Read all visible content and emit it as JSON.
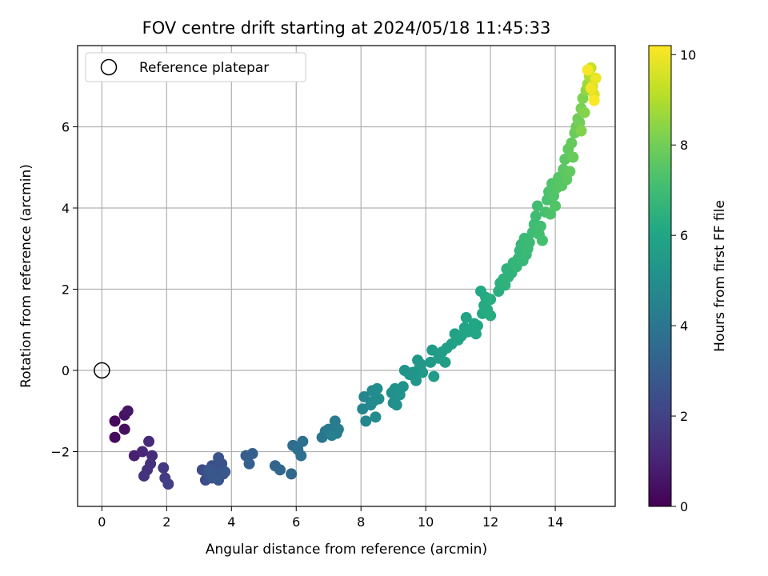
{
  "chart_data": {
    "type": "scatter",
    "title": "FOV centre drift starting at 2024/05/18 11:45:33",
    "xlabel": "Angular distance from reference (arcmin)",
    "ylabel": "Rotation from reference (arcmin)",
    "xlim": [
      -0.75,
      15.85
    ],
    "ylim": [
      -3.35,
      8.0
    ],
    "xticks": [
      0,
      2,
      4,
      6,
      8,
      10,
      12,
      14
    ],
    "yticks": [
      -2,
      0,
      2,
      4,
      6
    ],
    "grid": true,
    "legend": {
      "placement": "top-left",
      "entries": [
        "Reference platepar"
      ]
    },
    "reference_point": {
      "x": 0,
      "y": 0,
      "marker": "open-circle"
    },
    "colorbar": {
      "label": "Hours from first FF file",
      "colormap": "viridis",
      "range": [
        0,
        10.2
      ],
      "ticks": [
        0,
        2,
        4,
        6,
        8,
        10
      ]
    },
    "series": [
      {
        "columns": [
          "x",
          "y",
          "hours"
        ],
        "points": [
          [
            0.4,
            -1.25,
            0.2
          ],
          [
            0.4,
            -1.65,
            0.3
          ],
          [
            0.7,
            -1.45,
            0.4
          ],
          [
            0.7,
            -1.1,
            0.5
          ],
          [
            0.8,
            -1.0,
            0.6
          ],
          [
            1.0,
            -2.1,
            0.9
          ],
          [
            1.25,
            -2.0,
            1.1
          ],
          [
            1.45,
            -1.75,
            1.2
          ],
          [
            1.55,
            -2.1,
            1.3
          ],
          [
            1.5,
            -2.3,
            1.4
          ],
          [
            1.4,
            -2.45,
            1.45
          ],
          [
            1.3,
            -2.6,
            1.5
          ],
          [
            1.9,
            -2.4,
            1.7
          ],
          [
            1.95,
            -2.65,
            1.8
          ],
          [
            2.05,
            -2.8,
            1.9
          ],
          [
            3.1,
            -2.45,
            2.3
          ],
          [
            3.2,
            -2.7,
            2.35
          ],
          [
            3.3,
            -2.55,
            2.4
          ],
          [
            3.4,
            -2.35,
            2.45
          ],
          [
            3.5,
            -2.6,
            2.5
          ],
          [
            3.55,
            -2.4,
            2.55
          ],
          [
            3.6,
            -2.15,
            2.6
          ],
          [
            3.7,
            -2.3,
            2.65
          ],
          [
            3.75,
            -2.55,
            2.7
          ],
          [
            3.6,
            -2.7,
            2.72
          ],
          [
            3.4,
            -2.65,
            2.74
          ],
          [
            3.3,
            -2.45,
            2.76
          ],
          [
            3.8,
            -2.5,
            2.78
          ],
          [
            4.45,
            -2.1,
            3.0
          ],
          [
            4.55,
            -2.3,
            3.05
          ],
          [
            4.65,
            -2.05,
            3.1
          ],
          [
            5.35,
            -2.35,
            3.3
          ],
          [
            5.5,
            -2.45,
            3.35
          ],
          [
            5.85,
            -2.55,
            3.45
          ],
          [
            5.9,
            -1.85,
            3.6
          ],
          [
            6.05,
            -1.95,
            3.7
          ],
          [
            6.15,
            -2.1,
            3.75
          ],
          [
            6.2,
            -1.75,
            3.8
          ],
          [
            6.8,
            -1.65,
            4.0
          ],
          [
            6.9,
            -1.5,
            4.1
          ],
          [
            7.0,
            -1.45,
            4.15
          ],
          [
            7.2,
            -1.25,
            4.2
          ],
          [
            7.25,
            -1.55,
            4.25
          ],
          [
            7.3,
            -1.45,
            4.3
          ],
          [
            7.1,
            -1.6,
            4.35
          ],
          [
            8.05,
            -0.95,
            4.6
          ],
          [
            8.1,
            -0.65,
            4.65
          ],
          [
            8.15,
            -1.25,
            4.7
          ],
          [
            8.3,
            -0.85,
            4.75
          ],
          [
            8.35,
            -0.5,
            4.8
          ],
          [
            8.4,
            -0.75,
            4.82
          ],
          [
            8.45,
            -1.15,
            4.85
          ],
          [
            8.5,
            -0.45,
            4.88
          ],
          [
            8.55,
            -0.7,
            4.9
          ],
          [
            8.95,
            -0.55,
            5.0
          ],
          [
            9.0,
            -0.8,
            5.05
          ],
          [
            9.05,
            -0.45,
            5.08
          ],
          [
            9.1,
            -0.85,
            5.1
          ],
          [
            9.2,
            -0.6,
            5.15
          ],
          [
            9.3,
            -0.4,
            5.18
          ],
          [
            9.35,
            0.0,
            5.2
          ],
          [
            9.5,
            -0.1,
            5.25
          ],
          [
            9.6,
            -0.05,
            5.28
          ],
          [
            9.7,
            -0.25,
            5.3
          ],
          [
            9.75,
            0.25,
            5.35
          ],
          [
            9.8,
            0.05,
            5.38
          ],
          [
            9.85,
            0.15,
            5.4
          ],
          [
            9.9,
            -0.05,
            5.42
          ],
          [
            10.15,
            0.2,
            5.5
          ],
          [
            10.2,
            0.5,
            5.55
          ],
          [
            10.25,
            -0.15,
            5.58
          ],
          [
            10.4,
            0.3,
            5.62
          ],
          [
            10.5,
            0.45,
            5.65
          ],
          [
            10.6,
            0.2,
            5.68
          ],
          [
            10.65,
            0.55,
            5.7
          ],
          [
            10.8,
            0.65,
            5.75
          ],
          [
            10.9,
            0.9,
            5.8
          ],
          [
            11.0,
            0.75,
            5.85
          ],
          [
            11.1,
            0.85,
            5.88
          ],
          [
            11.2,
            1.05,
            5.9
          ],
          [
            11.25,
            1.3,
            5.92
          ],
          [
            11.3,
            0.95,
            5.95
          ],
          [
            11.4,
            1.0,
            5.98
          ],
          [
            11.5,
            1.15,
            6.0
          ],
          [
            11.55,
            0.9,
            6.05
          ],
          [
            11.6,
            1.1,
            6.08
          ],
          [
            11.7,
            1.95,
            6.15
          ],
          [
            11.75,
            1.4,
            6.18
          ],
          [
            11.8,
            1.6,
            6.2
          ],
          [
            11.85,
            1.8,
            6.22
          ],
          [
            11.9,
            1.5,
            6.25
          ],
          [
            12.0,
            1.35,
            6.28
          ],
          [
            12.0,
            1.75,
            6.3
          ],
          [
            12.25,
            1.95,
            6.4
          ],
          [
            12.3,
            2.15,
            6.45
          ],
          [
            12.4,
            2.25,
            6.5
          ],
          [
            12.45,
            2.1,
            6.52
          ],
          [
            12.5,
            2.5,
            6.55
          ],
          [
            12.55,
            2.3,
            6.58
          ],
          [
            12.65,
            2.4,
            6.6
          ],
          [
            12.7,
            2.65,
            6.65
          ],
          [
            12.8,
            2.55,
            6.68
          ],
          [
            12.85,
            2.75,
            6.7
          ],
          [
            12.9,
            2.95,
            6.75
          ],
          [
            12.95,
            3.1,
            6.78
          ],
          [
            13.0,
            2.7,
            6.8
          ],
          [
            13.05,
            3.25,
            6.82
          ],
          [
            13.1,
            2.85,
            6.85
          ],
          [
            13.15,
            3.0,
            6.88
          ],
          [
            13.2,
            3.15,
            6.9
          ],
          [
            13.3,
            3.4,
            6.95
          ],
          [
            13.35,
            3.6,
            7.0
          ],
          [
            13.4,
            3.8,
            7.02
          ],
          [
            13.45,
            4.05,
            7.05
          ],
          [
            13.5,
            3.35,
            7.08
          ],
          [
            13.55,
            3.55,
            7.1
          ],
          [
            13.6,
            3.2,
            7.12
          ],
          [
            13.7,
            3.9,
            7.2
          ],
          [
            13.75,
            4.2,
            7.25
          ],
          [
            13.8,
            4.4,
            7.3
          ],
          [
            13.85,
            3.85,
            7.32
          ],
          [
            13.9,
            4.6,
            7.35
          ],
          [
            13.95,
            4.3,
            7.38
          ],
          [
            14.0,
            4.05,
            7.4
          ],
          [
            14.05,
            4.5,
            7.45
          ],
          [
            14.1,
            4.75,
            7.48
          ],
          [
            14.2,
            4.55,
            7.52
          ],
          [
            14.25,
            4.95,
            7.55
          ],
          [
            14.3,
            5.2,
            7.6
          ],
          [
            14.35,
            4.7,
            7.62
          ],
          [
            14.4,
            5.45,
            7.68
          ],
          [
            14.45,
            4.9,
            7.7
          ],
          [
            14.5,
            5.6,
            7.75
          ],
          [
            14.55,
            5.25,
            7.8
          ],
          [
            14.6,
            5.85,
            7.85
          ],
          [
            14.65,
            6.0,
            7.9
          ],
          [
            14.7,
            6.2,
            7.95
          ],
          [
            14.75,
            6.1,
            8.0
          ],
          [
            14.8,
            6.45,
            8.1
          ],
          [
            14.85,
            6.7,
            8.2
          ],
          [
            14.8,
            5.9,
            8.25
          ],
          [
            14.9,
            6.35,
            8.3
          ],
          [
            14.95,
            6.9,
            8.5
          ],
          [
            15.0,
            7.05,
            8.7
          ],
          [
            15.05,
            7.25,
            9.0
          ],
          [
            15.1,
            7.45,
            9.3
          ],
          [
            15.15,
            7.0,
            9.5
          ],
          [
            15.2,
            6.8,
            9.7
          ],
          [
            15.25,
            7.2,
            9.9
          ],
          [
            15.1,
            6.95,
            10.0
          ],
          [
            15.0,
            7.4,
            10.1
          ],
          [
            15.2,
            6.65,
            10.15
          ]
        ]
      }
    ]
  }
}
